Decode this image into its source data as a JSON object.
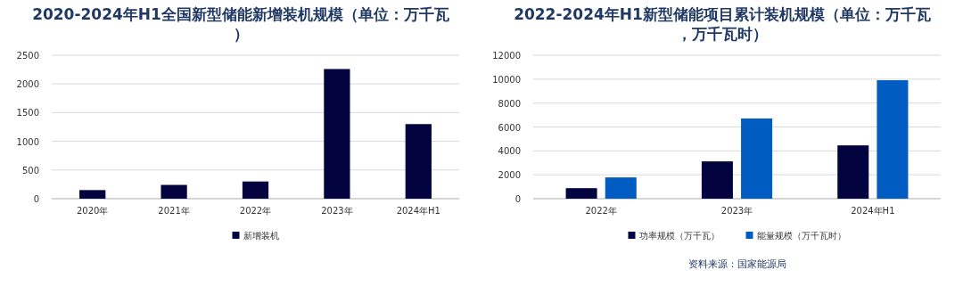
{
  "chart_data": [
    {
      "type": "bar",
      "title": "2020-2024年H1全国新型储能新增装机规模（单位：万千瓦）",
      "categories": [
        "2020年",
        "2021年",
        "2022年",
        "2023年",
        "2024年H1"
      ],
      "series": [
        {
          "name": "新增装机",
          "color": "#03033f",
          "values": [
            150,
            240,
            300,
            2260,
            1300
          ]
        }
      ],
      "ylim": [
        0,
        2500
      ],
      "yticks": [
        0,
        500,
        1000,
        1500,
        2000,
        2500
      ],
      "grid": "y",
      "legend": "bottom"
    },
    {
      "type": "bar",
      "title": "2022-2024年H1新型储能项目累计装机规模（单位：万千瓦，万千瓦时）",
      "categories": [
        "2022年",
        "2023年",
        "2024年H1"
      ],
      "series": [
        {
          "name": "功率规模（万千瓦）",
          "color": "#03033f",
          "values": [
            880,
            3120,
            4460
          ]
        },
        {
          "name": "能量规模（万千瓦时）",
          "color": "#005cc0",
          "values": [
            1780,
            6710,
            9910
          ]
        }
      ],
      "ylim": [
        0,
        12000
      ],
      "yticks": [
        0,
        2000,
        4000,
        6000,
        8000,
        10000,
        12000
      ],
      "grid": "y",
      "legend": "bottom",
      "annotations": [
        "资料来源：国家能源局"
      ]
    }
  ]
}
